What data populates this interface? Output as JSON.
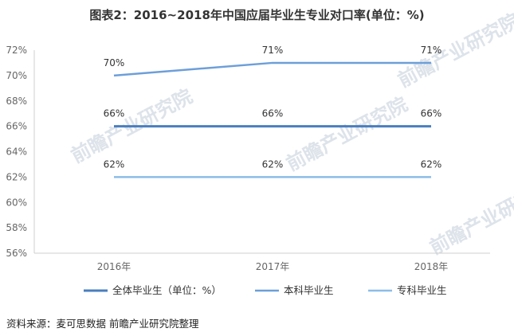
{
  "title": "图表2：2016~2018年中国应届毕业生专业对口率(单位：%)",
  "source": "资料来源：麦可思数据 前瞻产业研究院整理",
  "watermark": "前瞻产业研究院",
  "chart_data": {
    "type": "line",
    "title": "图表2：2016~2018年中国应届毕业生专业对口率(单位：%)",
    "categories": [
      "2016年",
      "2017年",
      "2018年"
    ],
    "y_ticks": [
      "56%",
      "58%",
      "60%",
      "62%",
      "64%",
      "66%",
      "68%",
      "70%",
      "72%"
    ],
    "ylim": [
      56,
      72
    ],
    "grid": false,
    "legend_position": "bottom",
    "series": [
      {
        "name": "全体毕业生（单位：%）",
        "values": [
          66,
          66,
          66
        ],
        "labels": [
          "66%",
          "66%",
          "66%"
        ],
        "color": "#4a7ebf",
        "width": 3
      },
      {
        "name": "本科毕业生",
        "values": [
          70,
          71,
          71
        ],
        "labels": [
          "70%",
          "71%",
          "71%"
        ],
        "color": "#6d9fd9",
        "width": 2.5
      },
      {
        "name": "专科毕业生",
        "values": [
          62,
          62,
          62
        ],
        "labels": [
          "62%",
          "62%",
          "62%"
        ],
        "color": "#8cbde8",
        "width": 2.5
      }
    ]
  }
}
